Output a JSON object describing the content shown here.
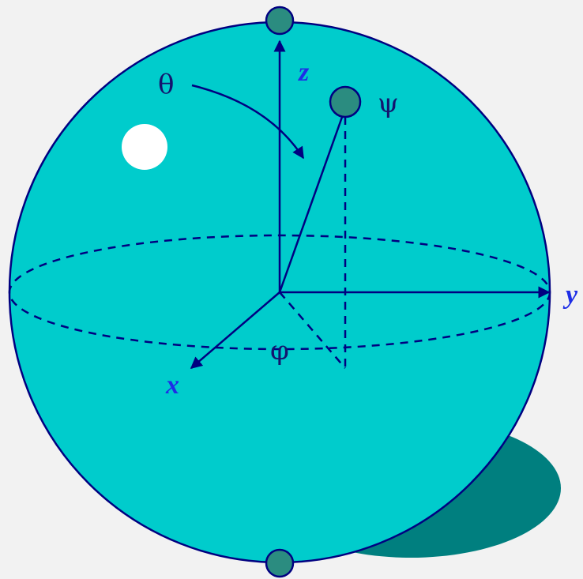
{
  "labels": {
    "z_axis": "z",
    "y_axis": "y",
    "x_axis": "x",
    "theta": "θ",
    "phi": "φ",
    "psi": "ψ"
  },
  "colors": {
    "sphere_fill": "#00cccc",
    "outline": "#000080",
    "shadow": "#007f7f",
    "pole_marker": "#2b8c80",
    "axis_label": "#1e2ee6",
    "greek_label": "#14146e",
    "highlight": "#ffffff",
    "background": "#f2f2f2"
  },
  "markers": {
    "north_pole": "pole-marker",
    "south_pole": "pole-marker",
    "state_point": "state-marker"
  }
}
